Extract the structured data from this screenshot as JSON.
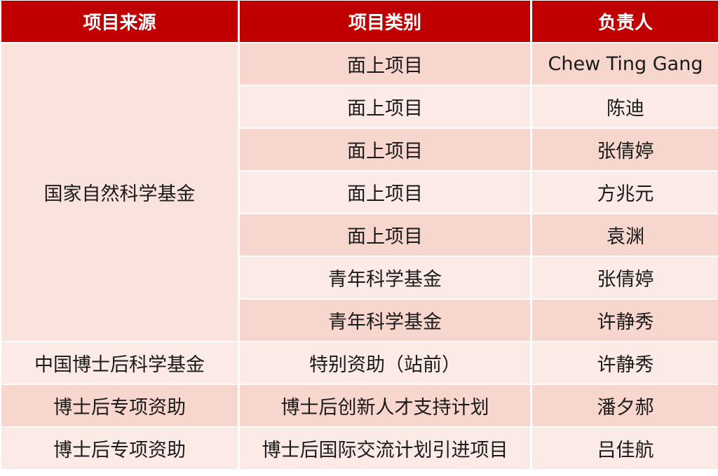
{
  "colors": {
    "header": "#c00000",
    "row_dark": "#f7d6cd",
    "row_light": "#fbeae6"
  },
  "headers": [
    "项目来源",
    "项目类别",
    "负责人"
  ],
  "merged_source": "国家自然科学基金",
  "rows": [
    {
      "category": "面上项目",
      "person": "Chew Ting Gang"
    },
    {
      "category": "面上项目",
      "person": "陈迪"
    },
    {
      "category": "面上项目",
      "person": "张倩婷"
    },
    {
      "category": "面上项目",
      "person": "方兆元"
    },
    {
      "category": "面上项目",
      "person": "袁渊"
    },
    {
      "category": "青年科学基金",
      "person": "张倩婷"
    },
    {
      "category": "青年科学基金",
      "person": "许静秀"
    },
    {
      "source": "中国博士后科学基金",
      "category": "特别资助（站前）",
      "person": "许静秀"
    },
    {
      "source": "博士后专项资助",
      "category": "博士后创新人才支持计划",
      "person": "潘夕郝"
    },
    {
      "source": "博士后专项资助",
      "category": "博士后国际交流计划引进项目",
      "person": "吕佳航"
    }
  ]
}
